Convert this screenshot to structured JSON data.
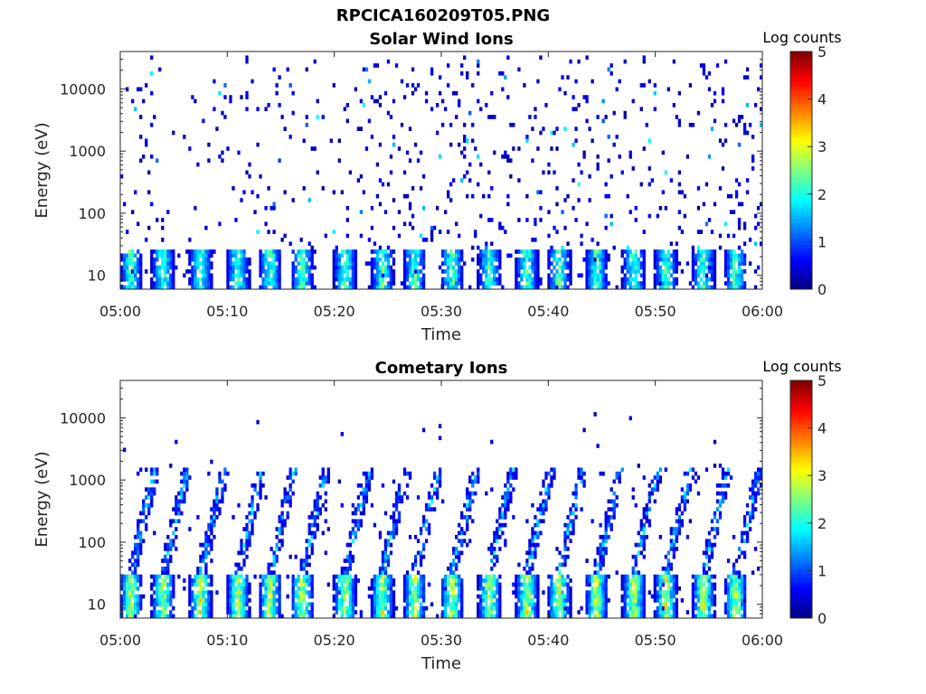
{
  "figure_title": "RPCICA160209T05.PNG",
  "chart_data": [
    {
      "type": "heatmap",
      "title": "Solar Wind Ions",
      "xlabel": "Time",
      "ylabel": "Energy (eV)",
      "x_ticks": [
        "05:00",
        "05:10",
        "05:20",
        "05:30",
        "05:40",
        "05:50",
        "06:00"
      ],
      "x_range": [
        "05:00",
        "06:00"
      ],
      "y_scale": "log",
      "y_ticks": [
        10,
        100,
        1000,
        10000
      ],
      "y_tick_labels": [
        "10",
        "100",
        "1000",
        "10000"
      ],
      "y_range": [
        6,
        40000
      ],
      "colorbar": {
        "title": "Log counts",
        "range": [
          0,
          5
        ],
        "ticks": [
          "0",
          "1",
          "2",
          "3",
          "4",
          "5"
        ],
        "colormap": "jet"
      },
      "description_pattern": {
        "low_energy_bursts_minutes": [
          1,
          4,
          7.5,
          11,
          14,
          17,
          21,
          24.5,
          27.5,
          31,
          34.5,
          38,
          41,
          44.5,
          48,
          51,
          54.5,
          57.5
        ],
        "low_energy_band_eV": [
          6,
          25
        ],
        "peak_log_counts": 2.5,
        "scatter_max_energy_eV": 35000,
        "scatter_typical_log_counts": 0.3
      }
    },
    {
      "type": "heatmap",
      "title": "Cometary Ions",
      "xlabel": "Time",
      "ylabel": "Energy (eV)",
      "x_ticks": [
        "05:00",
        "05:10",
        "05:20",
        "05:30",
        "05:40",
        "05:50",
        "06:00"
      ],
      "x_range": [
        "05:00",
        "06:00"
      ],
      "y_scale": "log",
      "y_ticks": [
        10,
        100,
        1000,
        10000
      ],
      "y_tick_labels": [
        "10",
        "100",
        "1000",
        "10000"
      ],
      "y_range": [
        6,
        40000
      ],
      "colorbar": {
        "title": "Log counts",
        "range": [
          0,
          5
        ],
        "ticks": [
          "0",
          "1",
          "2",
          "3",
          "4",
          "5"
        ],
        "colormap": "jet"
      },
      "description_pattern": {
        "low_energy_bursts_minutes": [
          1,
          4,
          7.5,
          11,
          14,
          17,
          21,
          24.5,
          27.5,
          31,
          34.5,
          38,
          41,
          44.5,
          48,
          51,
          54.5,
          57.5
        ],
        "low_energy_band_eV": [
          6,
          30
        ],
        "peak_log_counts": 3.2,
        "dispersion_max_energy_eV": 1500,
        "scatter_max_energy_eV": 15000
      }
    }
  ]
}
